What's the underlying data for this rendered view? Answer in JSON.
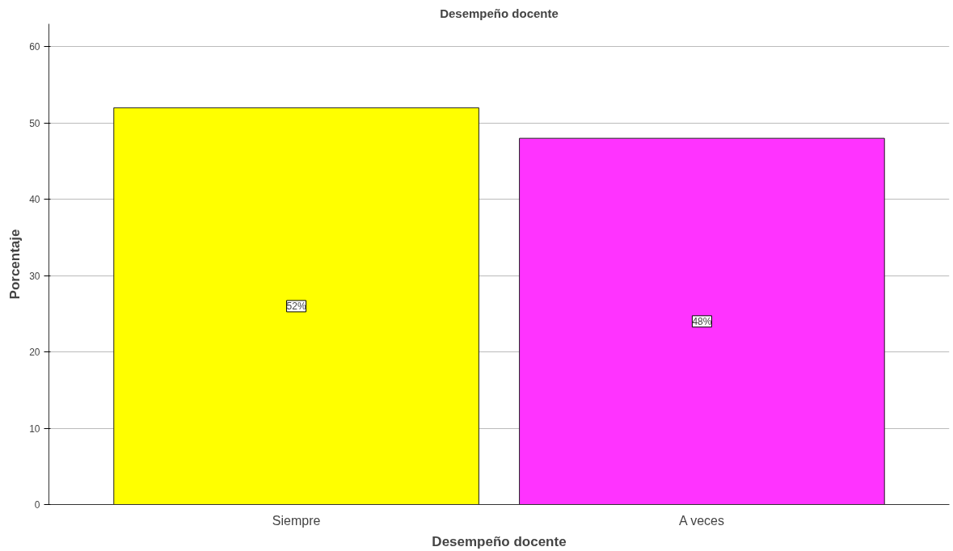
{
  "chart_data": {
    "type": "bar",
    "title": "Desempeño docente",
    "xlabel": "Desempeño docente",
    "ylabel": "Porcentaje",
    "categories": [
      "Siempre",
      "A veces"
    ],
    "values": [
      52,
      48
    ],
    "colors": [
      "#ffff00",
      "#ff33ff"
    ],
    "value_labels": [
      "52%",
      "48%"
    ],
    "ylim": [
      0,
      63
    ],
    "yticks": [
      0,
      10,
      20,
      30,
      40,
      50,
      60
    ],
    "grid": "y"
  }
}
